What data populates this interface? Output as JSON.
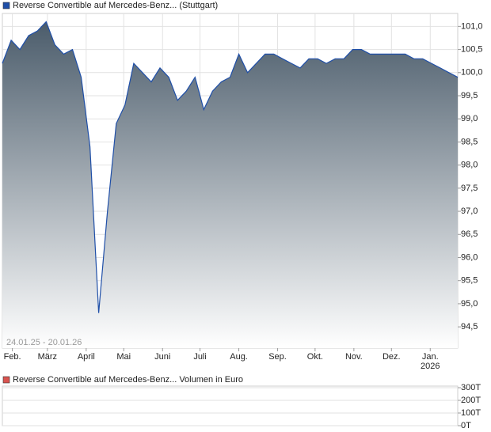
{
  "chart_data": [
    {
      "type": "area",
      "legend_name": "Reverse Convertible auf Mercedes-Benz... (Stuttgart)",
      "color": "#1f4fa8",
      "annotation": "24.01.25 - 20.01.26",
      "x_year_label": "2026",
      "values": [
        100.2,
        100.7,
        100.5,
        100.8,
        100.9,
        101.1,
        100.6,
        100.4,
        100.5,
        99.9,
        98.4,
        94.8,
        97.0,
        98.9,
        99.3,
        100.2,
        100.0,
        99.8,
        100.1,
        99.9,
        99.4,
        99.6,
        99.9,
        99.2,
        99.6,
        99.8,
        99.9,
        100.4,
        100.0,
        100.2,
        100.4,
        100.4,
        100.3,
        100.2,
        100.1,
        100.3,
        100.3,
        100.2,
        100.3,
        100.3,
        100.5,
        100.5,
        100.4,
        100.4,
        100.4,
        100.4,
        100.4,
        100.3,
        100.3,
        100.2,
        100.1,
        100.0,
        99.9
      ],
      "xlim": [
        0,
        52
      ],
      "xticks": [
        {
          "value": 1.14,
          "label": "Feb."
        },
        {
          "value": 5.14,
          "label": "März"
        },
        {
          "value": 9.57,
          "label": "April"
        },
        {
          "value": 13.86,
          "label": "Mai"
        },
        {
          "value": 18.29,
          "label": "Juni"
        },
        {
          "value": 22.57,
          "label": "Juli"
        },
        {
          "value": 27,
          "label": "Aug."
        },
        {
          "value": 31.43,
          "label": "Sep."
        },
        {
          "value": 35.71,
          "label": "Okt."
        },
        {
          "value": 40.14,
          "label": "Nov."
        },
        {
          "value": 44.43,
          "label": "Dez."
        },
        {
          "value": 48.86,
          "label": "Jan."
        }
      ],
      "ylim": [
        94.04,
        101.28
      ],
      "yticks": [
        {
          "value": 94.5,
          "label": "94,5"
        },
        {
          "value": 95.0,
          "label": "95,0"
        },
        {
          "value": 95.5,
          "label": "95,5"
        },
        {
          "value": 96.0,
          "label": "96,0"
        },
        {
          "value": 96.5,
          "label": "96,5"
        },
        {
          "value": 97.0,
          "label": "97,0"
        },
        {
          "value": 97.5,
          "label": "97,5"
        },
        {
          "value": 98.0,
          "label": "98,0"
        },
        {
          "value": 98.5,
          "label": "98,5"
        },
        {
          "value": 99.0,
          "label": "99,0"
        },
        {
          "value": 99.5,
          "label": "99,5"
        },
        {
          "value": 100.0,
          "label": "100,0"
        },
        {
          "value": 100.5,
          "label": "100,5"
        },
        {
          "value": 101.0,
          "label": "101,0"
        }
      ],
      "grid": true
    },
    {
      "type": "bar",
      "legend_name": "Reverse Convertible auf Mercedes-Benz... Volumen in Euro",
      "color": "#d9534f",
      "values": [],
      "ylim": [
        0,
        312500
      ],
      "yticks": [
        {
          "value": 0,
          "label": "0T"
        },
        {
          "value": 100000,
          "label": "100T"
        },
        {
          "value": 200000,
          "label": "200T"
        },
        {
          "value": 300000,
          "label": "300T"
        }
      ],
      "grid": true
    }
  ]
}
